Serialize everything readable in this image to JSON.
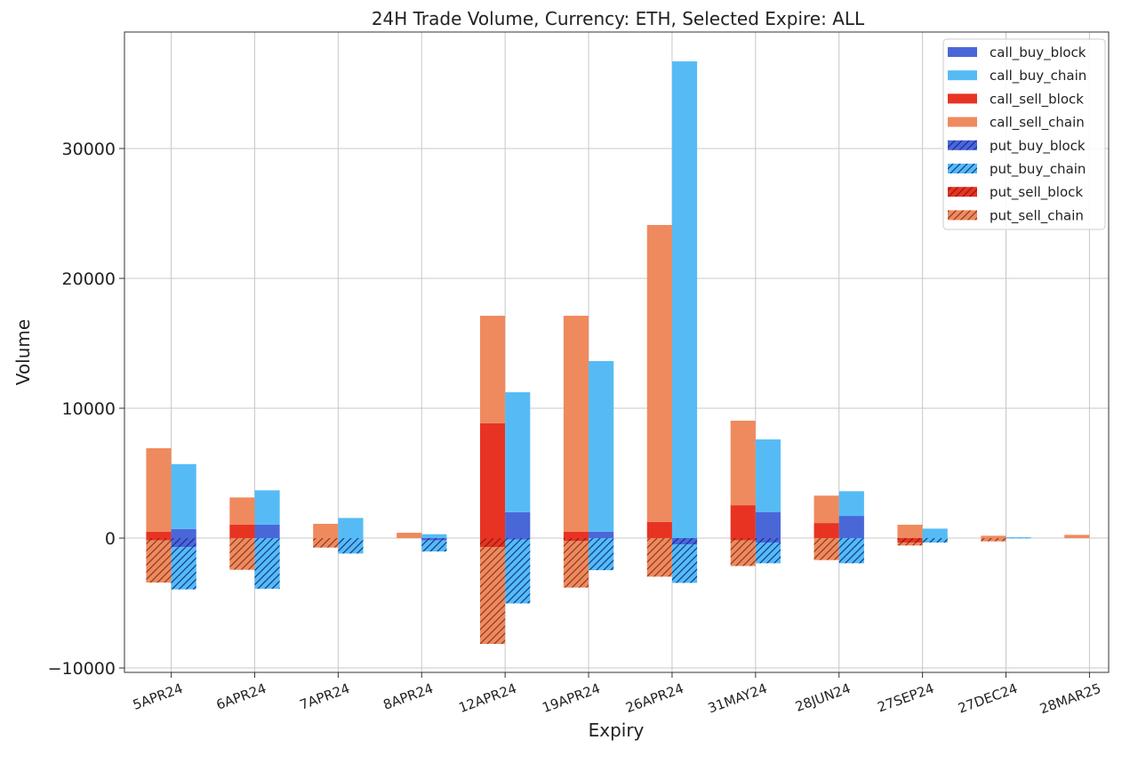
{
  "chart_data": {
    "type": "bar",
    "title": "24H Trade Volume, Currency: ETH, Selected Expire: ALL",
    "xlabel": "Expiry",
    "ylabel": "Volume",
    "ylim": [
      -10340,
      38970
    ],
    "yticks": [
      -10000,
      0,
      10000,
      20000,
      30000
    ],
    "grid": true,
    "legend_placement": "top-right",
    "stacked": true,
    "categories": [
      "5APR24",
      "6APR24",
      "7APR24",
      "8APR24",
      "12APR24",
      "19APR24",
      "26APR24",
      "31MAY24",
      "28JUN24",
      "27SEP24",
      "27DEC24",
      "28MAR25"
    ],
    "series": [
      {
        "name": "call_buy_block",
        "side": "buy",
        "color": "#4a67d8",
        "hatch": false,
        "values": [
          700,
          1030,
          0,
          0,
          2000,
          500,
          0,
          2010,
          1710,
          0,
          0,
          0
        ]
      },
      {
        "name": "call_buy_chain",
        "side": "buy",
        "color": "#56bbf5",
        "hatch": false,
        "values": [
          5000,
          2650,
          1550,
          300,
          9230,
          13130,
          36710,
          5590,
          1900,
          730,
          70,
          0
        ]
      },
      {
        "name": "call_sell_block",
        "side": "sell",
        "color": "#e83323",
        "hatch": false,
        "values": [
          500,
          1030,
          0,
          0,
          8840,
          500,
          1250,
          2530,
          1160,
          0,
          0,
          0
        ]
      },
      {
        "name": "call_sell_chain",
        "side": "sell",
        "color": "#ef8a5e",
        "hatch": false,
        "values": [
          6420,
          2100,
          1100,
          410,
          8280,
          16620,
          22860,
          6510,
          2110,
          1030,
          180,
          250
        ]
      },
      {
        "name": "put_buy_block",
        "side": "buy",
        "color": "#4a67d8",
        "hatch": true,
        "values": [
          -690,
          0,
          0,
          -180,
          -100,
          0,
          -500,
          -340,
          0,
          0,
          0,
          0
        ]
      },
      {
        "name": "put_buy_chain",
        "side": "buy",
        "color": "#56bbf5",
        "hatch": true,
        "values": [
          -3260,
          -3900,
          -1190,
          -850,
          -4930,
          -2470,
          -2950,
          -1600,
          -1940,
          -340,
          -20,
          0
        ]
      },
      {
        "name": "put_sell_block",
        "side": "sell",
        "color": "#e83323",
        "hatch": true,
        "values": [
          -180,
          0,
          0,
          0,
          -700,
          -230,
          0,
          -180,
          0,
          -340,
          0,
          0
        ]
      },
      {
        "name": "put_sell_chain",
        "side": "sell",
        "color": "#ef8a5e",
        "hatch": true,
        "values": [
          -3240,
          -2440,
          -730,
          0,
          -7450,
          -3580,
          -2970,
          -1970,
          -1690,
          -230,
          -250,
          0
        ]
      }
    ]
  }
}
